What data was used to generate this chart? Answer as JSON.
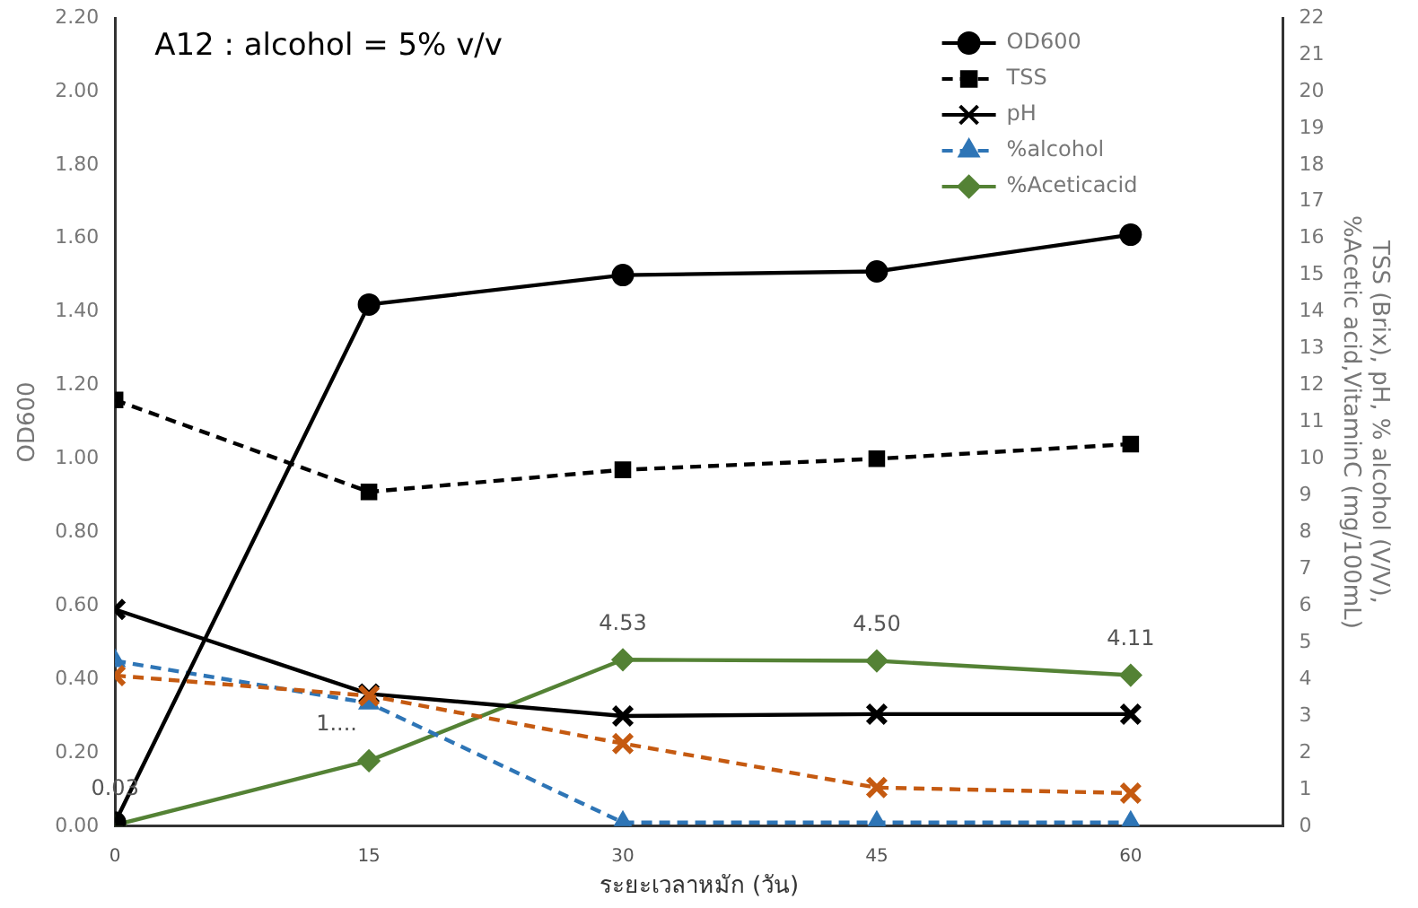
{
  "chart_data": {
    "type": "line",
    "title": "A12 : alcohol = 5% v/v",
    "xlabel": "ระยะเวลาหมัก (วัน)",
    "ylabel": "OD600",
    "y2label": "TSS (Brix), pH, % alcohol (V/V),\n%Acetic acid,VitaminC (mg/100mL)",
    "x": [
      0,
      15,
      30,
      45,
      60
    ],
    "xlim": [
      0,
      69
    ],
    "xticks": [
      0,
      15,
      30,
      45,
      60
    ],
    "ylim": [
      0,
      2.2
    ],
    "yticks": [
      {
        "value": 0,
        "label": "0.00"
      },
      {
        "value": 0.2,
        "label": "0.20"
      },
      {
        "value": 0.4,
        "label": "0.40"
      },
      {
        "value": 0.6,
        "label": "0.60"
      },
      {
        "value": 0.8,
        "label": "0.80"
      },
      {
        "value": 1,
        "label": "1.00"
      },
      {
        "value": 1.2,
        "label": "1.20"
      },
      {
        "value": 1.4,
        "label": "1.40"
      },
      {
        "value": 1.6,
        "label": "1.60"
      },
      {
        "value": 1.8,
        "label": "1.80"
      },
      {
        "value": 2,
        "label": "2.00"
      },
      {
        "value": 2.2,
        "label": "2.20"
      }
    ],
    "y2lim": [
      0,
      22
    ],
    "y2ticks": [
      0,
      1,
      2,
      3,
      4,
      5,
      6,
      7,
      8,
      9,
      10,
      11,
      12,
      13,
      14,
      15,
      16,
      17,
      18,
      19,
      20,
      21,
      22
    ],
    "series": [
      {
        "name": "OD600",
        "color": "#000000",
        "values": [
          0.01,
          1.42,
          1.5,
          1.51,
          1.61
        ],
        "marker": "circle",
        "line_style": "solid"
      },
      {
        "name": "TSS",
        "color": "#000000",
        "values": [
          11.6,
          9.1,
          9.7,
          10.0,
          10.4
        ],
        "axis": "y2",
        "marker": "square",
        "line_style": "dashed"
      },
      {
        "name": "pH",
        "color": "#000000",
        "values": [
          5.9,
          3.6,
          3.0,
          3.05,
          3.05
        ],
        "axis": "y2",
        "marker": "cross",
        "line_style": "solid"
      },
      {
        "name": "%alcohol",
        "color": "#2e75b6",
        "values": [
          4.5,
          3.35,
          0.1,
          0.1,
          0.1
        ],
        "axis": "y2",
        "marker": "triangle",
        "line_style": "dashed"
      },
      {
        "name": "%Aceticacid",
        "color": "#548235",
        "values": [
          0.03,
          1.78,
          4.53,
          4.5,
          4.11
        ],
        "axis": "y2",
        "marker": "diamond",
        "line_style": "solid",
        "value_labels": [
          "0.03",
          "1....",
          "4.53",
          "4.50",
          "4.11"
        ]
      },
      {
        "color": "#c55a11",
        "values": [
          4.1,
          3.55,
          2.25,
          1.05,
          0.9
        ],
        "axis": "y2",
        "marker": "cross",
        "line_style": "dashed"
      }
    ],
    "grid": false,
    "legend": "top right"
  }
}
